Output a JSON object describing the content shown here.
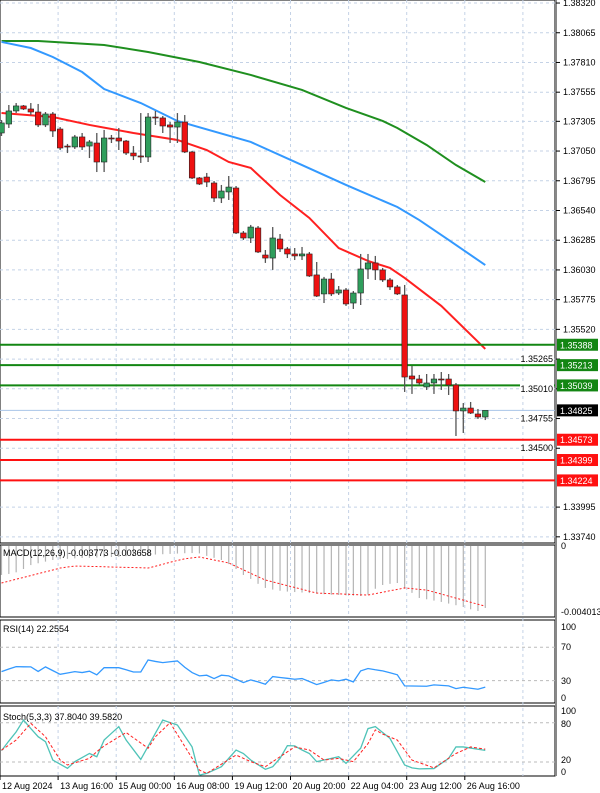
{
  "colors": {
    "bull": "#2f9e5c",
    "bear": "#ee1111",
    "ma_slow": "#1f8f1f",
    "ma_mid": "#3399ff",
    "ma_fast": "#ff2020",
    "resistance": "#138613",
    "support": "#ff1010",
    "current_price_line": "#a8c4e8",
    "rsi": "#3399ff",
    "stoch_main": "#4fc3b8",
    "stoch_signal": "#ff2020",
    "macd_hist": "#b4b4b4",
    "macd_signal": "#ff2020"
  },
  "chart_data": [
    {
      "type": "candlestick",
      "title": "",
      "ylim": [
        1.33687,
        1.38346
      ],
      "grid": true,
      "y_ticks": [
        "1.38320",
        "1.38065",
        "1.37810",
        "1.37555",
        "1.37305",
        "1.37050",
        "1.36795",
        "1.36540",
        "1.36285",
        "1.36030",
        "1.35775",
        "1.35520",
        "1.35265",
        "1.35010",
        "1.34755",
        "1.34500",
        "1.33995",
        "1.33740"
      ],
      "x_tick_labels": [
        "12 Aug 2024",
        "13 Aug 16:00",
        "15 Aug 00:00",
        "16 Aug 08:00",
        "19 Aug 12:00",
        "20 Aug 20:00",
        "22 Aug 04:00",
        "23 Aug 12:00",
        "26 Aug 16:00"
      ],
      "ohlc": [
        [
          1.37205,
          1.37316,
          1.37179,
          1.37291
        ],
        [
          1.37282,
          1.37445,
          1.37248,
          1.37394
        ],
        [
          1.37394,
          1.37462,
          1.37376,
          1.37437
        ],
        [
          1.37437,
          1.37445,
          1.37402,
          1.37411
        ],
        [
          1.37411,
          1.37462,
          1.37359,
          1.37385
        ],
        [
          1.37385,
          1.37454,
          1.37256,
          1.37274
        ],
        [
          1.37274,
          1.37385,
          1.37256,
          1.37368
        ],
        [
          1.37368,
          1.37385,
          1.37171,
          1.37222
        ],
        [
          1.37239,
          1.37256,
          1.37059,
          1.37076
        ],
        [
          1.37093,
          1.37111,
          1.37033,
          1.37085
        ],
        [
          1.37085,
          1.37188,
          1.37068,
          1.37171
        ],
        [
          1.37171,
          1.37205,
          1.37059,
          1.37085
        ],
        [
          1.37093,
          1.37145,
          1.3699,
          1.37128
        ],
        [
          1.37119,
          1.37205,
          1.3687,
          1.36956
        ],
        [
          1.36956,
          1.37231,
          1.3687,
          1.37162
        ],
        [
          1.37162,
          1.37188,
          1.37119,
          1.37155
        ],
        [
          1.37162,
          1.37248,
          1.37059,
          1.37136
        ],
        [
          1.37136,
          1.37145,
          1.37016,
          1.37033
        ],
        [
          1.37033,
          1.37093,
          1.36973,
          1.37008
        ],
        [
          1.37008,
          1.37376,
          1.36948,
          1.36999
        ],
        [
          1.36999,
          1.37376,
          1.36956,
          1.37342
        ],
        [
          1.37342,
          1.37394,
          1.37274,
          1.37334
        ],
        [
          1.37334,
          1.37351,
          1.37205,
          1.37265
        ],
        [
          1.37274,
          1.37299,
          1.37119,
          1.37256
        ],
        [
          1.37256,
          1.37376,
          1.37119,
          1.37299
        ],
        [
          1.37299,
          1.37359,
          1.37033,
          1.37042
        ],
        [
          1.37042,
          1.37051,
          1.3681,
          1.36819
        ],
        [
          1.36819,
          1.36827,
          1.36759,
          1.36767
        ],
        [
          1.36827,
          1.36862,
          1.36741,
          1.36784
        ],
        [
          1.36776,
          1.36793,
          1.36613,
          1.36647
        ],
        [
          1.36647,
          1.36759,
          1.36604,
          1.36707
        ],
        [
          1.36699,
          1.36836,
          1.3663,
          1.36741
        ],
        [
          1.36733,
          1.3675,
          1.36338,
          1.36347
        ],
        [
          1.36347,
          1.36364,
          1.36287,
          1.36304
        ],
        [
          1.36304,
          1.36416,
          1.36261,
          1.36398
        ],
        [
          1.3639,
          1.36407,
          1.36175,
          1.36184
        ],
        [
          1.36158,
          1.36201,
          1.3609,
          1.36132
        ],
        [
          1.36132,
          1.36398,
          1.3603,
          1.36304
        ],
        [
          1.36295,
          1.36338,
          1.36184,
          1.3621
        ],
        [
          1.3621,
          1.36227,
          1.36132,
          1.36167
        ],
        [
          1.36167,
          1.36218,
          1.36115,
          1.3615
        ],
        [
          1.3615,
          1.36227,
          1.36115,
          1.36167
        ],
        [
          1.36167,
          1.36184,
          1.3597,
          1.35978
        ],
        [
          1.35987,
          1.36098,
          1.35798,
          1.35806
        ],
        [
          1.35824,
          1.3597,
          1.35746,
          1.35952
        ],
        [
          1.35952,
          1.36004,
          1.35806,
          1.35824
        ],
        [
          1.35832,
          1.35892,
          1.35815,
          1.35858
        ],
        [
          1.35858,
          1.35875,
          1.35721,
          1.35738
        ],
        [
          1.35746,
          1.35849,
          1.35695,
          1.35832
        ],
        [
          1.35832,
          1.36167,
          1.35729,
          1.36038
        ],
        [
          1.36038,
          1.36167,
          1.35952,
          1.3609
        ],
        [
          1.3609,
          1.3615,
          1.35944,
          1.3603
        ],
        [
          1.3603,
          1.36047,
          1.35927,
          1.35944
        ],
        [
          1.35944,
          1.35961,
          1.35858,
          1.35884
        ],
        [
          1.35884,
          1.35901,
          1.35815,
          1.35824
        ],
        [
          1.35815,
          1.35901,
          1.34983,
          1.35111
        ],
        [
          1.3512,
          1.35206,
          1.34966,
          1.35094
        ],
        [
          1.35094,
          1.35129,
          1.35043,
          1.3506
        ],
        [
          1.35026,
          1.35137,
          1.35,
          1.3506
        ],
        [
          1.3506,
          1.35137,
          1.34966,
          1.35094
        ],
        [
          1.35094,
          1.35154,
          1.35,
          1.35086
        ],
        [
          1.35094,
          1.35137,
          1.34957,
          1.35043
        ],
        [
          1.35043,
          1.3506,
          1.34605,
          1.3482
        ],
        [
          1.3482,
          1.34888,
          1.34631,
          1.34845
        ],
        [
          1.34845,
          1.34897,
          1.34794,
          1.34802
        ],
        [
          1.34794,
          1.34837,
          1.34751,
          1.34768
        ],
        [
          1.34768,
          1.3482,
          1.34742,
          1.34825
        ]
      ],
      "moving_averages": [
        {
          "color_key": "ma_slow",
          "points": [
            [
              0,
              1.37994
            ],
            [
              5,
              1.37994
            ],
            [
              14,
              1.3796
            ],
            [
              20,
              1.379
            ],
            [
              27,
              1.37814
            ],
            [
              34,
              1.37703
            ],
            [
              41,
              1.37574
            ],
            [
              47,
              1.3742
            ],
            [
              52,
              1.37308
            ],
            [
              54,
              1.37248
            ],
            [
              58,
              1.37102
            ],
            [
              62,
              1.3693
            ],
            [
              66,
              1.36784
            ]
          ]
        },
        {
          "color_key": "ma_mid",
          "points": [
            [
              0,
              1.37986
            ],
            [
              4,
              1.37934
            ],
            [
              7,
              1.37857
            ],
            [
              11,
              1.37728
            ],
            [
              14,
              1.37582
            ],
            [
              19,
              1.37462
            ],
            [
              24,
              1.37308
            ],
            [
              34,
              1.37128
            ],
            [
              41,
              1.3693
            ],
            [
              47,
              1.36759
            ],
            [
              54,
              1.3657
            ],
            [
              57,
              1.36458
            ],
            [
              61,
              1.36287
            ],
            [
              66,
              1.36072
            ]
          ]
        },
        {
          "color_key": "ma_fast",
          "points": [
            [
              0,
              1.37376
            ],
            [
              7,
              1.37342
            ],
            [
              12,
              1.37274
            ],
            [
              18,
              1.37205
            ],
            [
              24,
              1.37145
            ],
            [
              28,
              1.37059
            ],
            [
              31,
              1.36956
            ],
            [
              34,
              1.36905
            ],
            [
              38,
              1.36673
            ],
            [
              42,
              1.36476
            ],
            [
              46,
              1.36218
            ],
            [
              50,
              1.36107
            ],
            [
              53,
              1.36047
            ],
            [
              55,
              1.35961
            ],
            [
              60,
              1.35721
            ],
            [
              66,
              1.35352
            ]
          ]
        }
      ],
      "levels": [
        {
          "price": "1.35388",
          "kind": "resistance"
        },
        {
          "price": "1.35213",
          "kind": "resistance"
        },
        {
          "price": "1.35039",
          "kind": "resistance"
        },
        {
          "price": "1.34573",
          "kind": "support"
        },
        {
          "price": "1.34399",
          "kind": "support"
        },
        {
          "price": "1.34224",
          "kind": "support"
        }
      ],
      "current_price": "1.34825"
    },
    {
      "type": "bar",
      "label": "MACD(12,26,9) -0.003773 -0.003658",
      "y_ticks": [
        "0",
        "-0.004013"
      ],
      "histogram": [
        -0.00176,
        -0.0017,
        -0.0016,
        -0.0014,
        -0.00116,
        -0.00105,
        -0.00095,
        -0.00085,
        -0.0008,
        -0.00078,
        -0.00075,
        -0.00073,
        -0.00072,
        -0.0007,
        -0.00068,
        -0.00067,
        -0.00066,
        -0.00062,
        -0.0006,
        -0.00058,
        -0.00055,
        -0.00052,
        -0.0005,
        -0.00048,
        -0.00046,
        -0.00044,
        -0.00043,
        -0.00045,
        -0.0006,
        -0.00072,
        -0.00085,
        -0.0011,
        -0.0014,
        -0.00176,
        -0.002,
        -0.0023,
        -0.00255,
        -0.00265,
        -0.00272,
        -0.00277,
        -0.0028,
        -0.00283,
        -0.00286,
        -0.0029,
        -0.00293,
        -0.00296,
        -0.00298,
        -0.003,
        -0.00302,
        -0.00304,
        -0.00296,
        -0.0026,
        -0.00237,
        -0.0023,
        -0.00225,
        -0.0026,
        -0.00285,
        -0.00316,
        -0.00324,
        -0.00332,
        -0.0034,
        -0.0035,
        -0.0036,
        -0.00371,
        -0.00385,
        -0.00395,
        -0.00377
      ],
      "signal": [
        -0.00225,
        -0.00214,
        -0.00202,
        -0.00191,
        -0.0018,
        -0.00168,
        -0.00157,
        -0.00146,
        -0.00134,
        -0.00128,
        -0.00122,
        -0.00123,
        -0.00124,
        -0.00125,
        -0.00126,
        -0.00128,
        -0.00129,
        -0.0013,
        -0.00131,
        -0.00132,
        -0.00134,
        -0.00123,
        -0.00111,
        -0.00099,
        -0.00088,
        -0.00078,
        -0.00072,
        -0.00067,
        -0.00076,
        -0.00085,
        -0.00094,
        -0.00103,
        -0.00124,
        -0.00145,
        -0.00166,
        -0.00187,
        -0.00207,
        -0.00218,
        -0.0023,
        -0.00241,
        -0.00252,
        -0.00263,
        -0.00275,
        -0.00286,
        -0.00288,
        -0.0029,
        -0.00291,
        -0.00293,
        -0.00295,
        -0.00297,
        -0.00298,
        -0.0029,
        -0.00281,
        -0.00272,
        -0.00264,
        -0.00255,
        -0.00259,
        -0.00264,
        -0.00268,
        -0.0028,
        -0.00292,
        -0.00305,
        -0.00317,
        -0.00329,
        -0.00342,
        -0.00354,
        -0.00366
      ]
    },
    {
      "type": "line",
      "label": "RSI(14) 22.2554",
      "ylim": [
        0,
        100
      ],
      "y_ticks": [
        "100",
        "70",
        "30",
        "0"
      ],
      "values": [
        40.8,
        44,
        46.8,
        46.6,
        46.5,
        41,
        46.5,
        42,
        37.6,
        39.2,
        40.8,
        39.7,
        41.3,
        37,
        45.5,
        45.5,
        45.5,
        43,
        40.4,
        40.4,
        54.8,
        53,
        51.6,
        52.6,
        53.6,
        46,
        39.7,
        35.7,
        36.5,
        32.5,
        36.5,
        35.7,
        31.7,
        27.7,
        30.9,
        28.5,
        25.7,
        34.9,
        33.8,
        32.8,
        31.7,
        32.5,
        29,
        25.3,
        28,
        30.9,
        29.7,
        31.7,
        28.5,
        41.7,
        44.5,
        43,
        41.7,
        39.4,
        37,
        23.7,
        23.6,
        23.4,
        23.3,
        24.9,
        24.3,
        23.7,
        20.5,
        22.1,
        20.9,
        19.7,
        22.3
      ]
    },
    {
      "type": "line",
      "label": "Stoch(5,3,3) 37.8040 39.5820",
      "ylim": [
        0,
        100
      ],
      "y_ticks": [
        "100",
        "80",
        "20",
        "0"
      ],
      "main": [
        37.3,
        52,
        66,
        84,
        71,
        58.6,
        51,
        23,
        16.6,
        10.3,
        20.5,
        26.8,
        33,
        28,
        53.5,
        63.8,
        74,
        53.5,
        38.8,
        24,
        44,
        64,
        84,
        80.2,
        76.4,
        59.7,
        43,
        0,
        2.6,
        7.7,
        12.8,
        25.6,
        38.3,
        33,
        23,
        15.9,
        8.8,
        12.8,
        25.6,
        45,
        44.6,
        38.3,
        33,
        20.5,
        23,
        25.5,
        28,
        18,
        29.5,
        41,
        71,
        74,
        65,
        56,
        35.7,
        15.4,
        11,
        9.5,
        9.8,
        10,
        17.8,
        25.5,
        43,
        43,
        41.3,
        39.5,
        37.8
      ],
      "signal": [
        38,
        45.8,
        53.5,
        66.3,
        79,
        68.8,
        58.6,
        40.8,
        23,
        15.4,
        18.8,
        22.2,
        25.5,
        35.8,
        44.6,
        51.4,
        58.2,
        65,
        57,
        49,
        41,
        58.6,
        69.3,
        80,
        61.9,
        43.9,
        25.8,
        7.7,
        2.6,
        9.6,
        16.6,
        23.6,
        30.6,
        25.6,
        20.5,
        16.7,
        12.8,
        20.4,
        28,
        35.5,
        43,
        40.7,
        38.3,
        30.7,
        23,
        24.3,
        25.5,
        23,
        20.5,
        34.3,
        48.1,
        69,
        62.7,
        58.1,
        53.5,
        38.3,
        23,
        19,
        15,
        11,
        18.3,
        25.7,
        33,
        38,
        43,
        41.3,
        39.6
      ]
    }
  ]
}
